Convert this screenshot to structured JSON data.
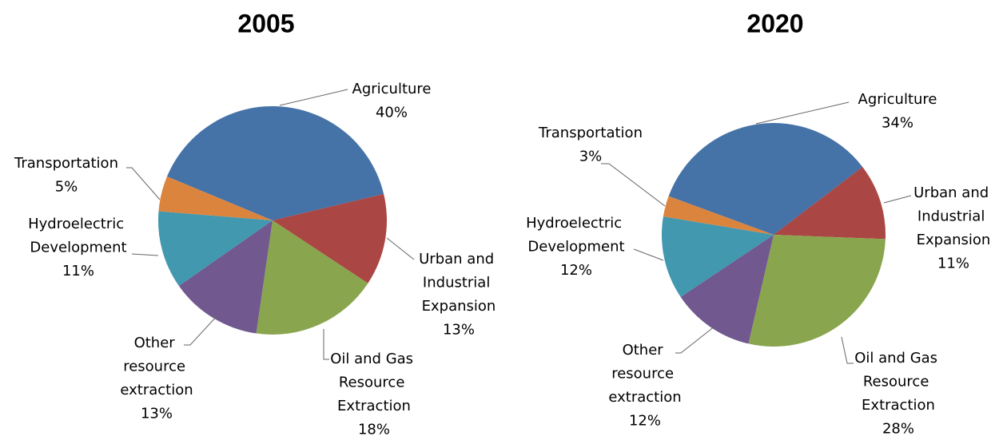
{
  "chart_data": [
    {
      "type": "pie",
      "title": "2005",
      "categories": [
        "Agriculture",
        "Urban and Industrial Expansion",
        "Oil and Gas Resource Extraction",
        "Other resource extraction",
        "Hydroelectric Development",
        "Transportation"
      ],
      "values": [
        40,
        13,
        18,
        13,
        11,
        5
      ],
      "value_labels": [
        "40%",
        "13%",
        "18%",
        "13%",
        "11%",
        "5%"
      ],
      "colors": [
        "#4572a7",
        "#aa4643",
        "#89a54e",
        "#71588f",
        "#4198af",
        "#db843d"
      ]
    },
    {
      "type": "pie",
      "title": "2020",
      "categories": [
        "Agriculture",
        "Urban and Industrial Expansion",
        "Oil and Gas Resource Extraction",
        "Other resource extraction",
        "Hydroelectric Development",
        "Transportation"
      ],
      "values": [
        34,
        11,
        28,
        12,
        12,
        3
      ],
      "value_labels": [
        "34%",
        "11%",
        "28%",
        "12%",
        "12%",
        "3%"
      ],
      "colors": [
        "#4572a7",
        "#aa4643",
        "#89a54e",
        "#71588f",
        "#4198af",
        "#db843d"
      ]
    }
  ]
}
